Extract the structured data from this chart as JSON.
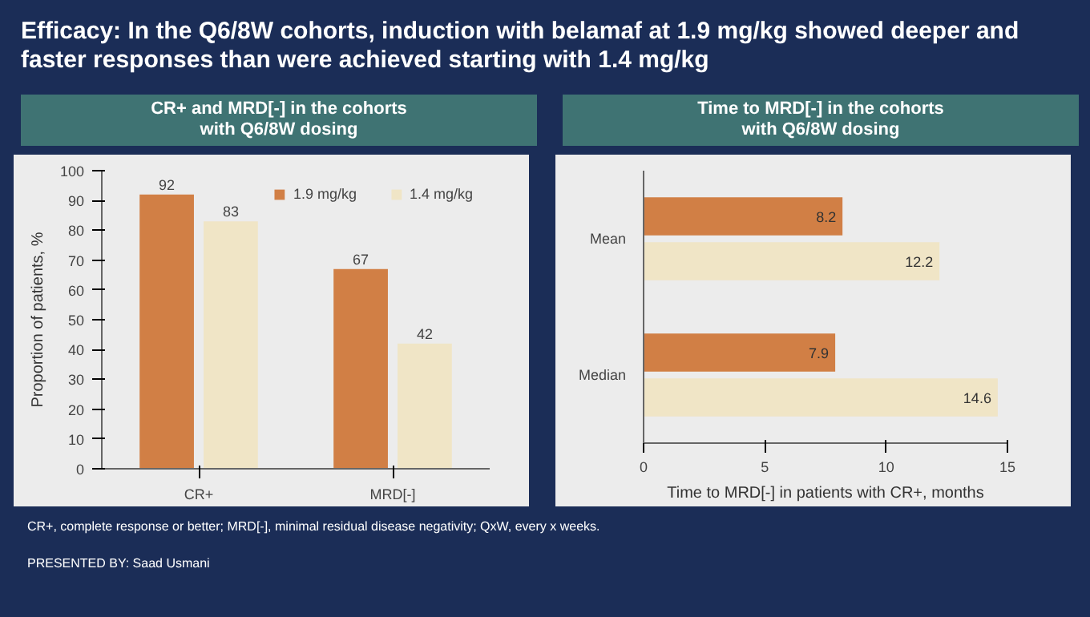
{
  "chart_data": [
    {
      "type": "bar",
      "title": "Efficacy: In the Q6/8W cohorts, induction with belamaf at 1.9 mg/kg showed deeper and faster responses than were achieved starting with 1.4 mg/kg",
      "subtitle": "CR+ and MRD[-] in the cohorts\nwith Q6/8W dosing",
      "categories": [
        "CR+",
        "MRD[-]"
      ],
      "series": [
        {
          "name": "1.9 mg/kg",
          "color": "#d17f45",
          "values": [
            92,
            67
          ]
        },
        {
          "name": "1.4 mg/kg",
          "color": "#f0e5c6",
          "values": [
            83,
            42
          ]
        }
      ],
      "ylim": [
        0,
        100
      ],
      "yticks": [
        0,
        10,
        20,
        30,
        40,
        50,
        60,
        70,
        80,
        90,
        100
      ],
      "ylabel": "Proportion of patients, %",
      "data_labels": true,
      "legend": "top right",
      "grid": false,
      "annotations": [
        "CR+, complete response or better; MRD[-], minimal residual disease negativity; QxW, every x weeks."
      ]
    },
    {
      "type": "bar",
      "orientation": "horizontal",
      "title": "Time to MRD[-] in the cohorts\nwith Q6/8W dosing",
      "categories": [
        "Mean",
        "Median"
      ],
      "series": [
        {
          "color": "#d17f45",
          "values": [
            8.2,
            7.9
          ]
        },
        {
          "color": "#f0e5c6",
          "values": [
            12.2,
            14.6
          ]
        }
      ],
      "xlim": [
        0,
        15
      ],
      "xticks": [
        0,
        5,
        10,
        15
      ],
      "xlabel": "Time to MRD[-] in patients with CR+, months",
      "data_labels": true,
      "legend": false,
      "grid": false,
      "annotations": [
        "PRESENTED BY: Saad Usmani"
      ]
    }
  ]
}
